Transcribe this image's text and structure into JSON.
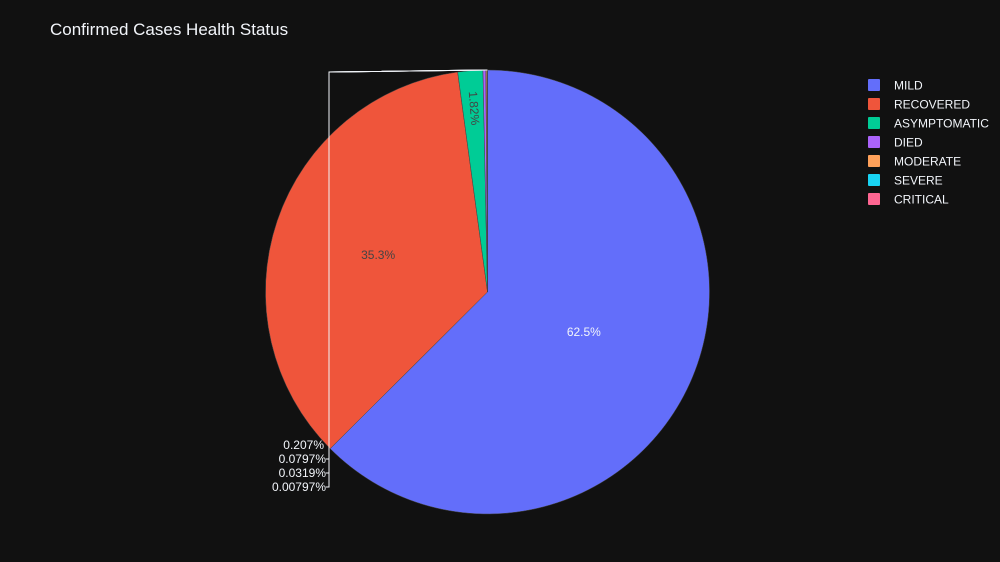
{
  "chart_data": {
    "type": "pie",
    "title": "Confirmed Cases Health Status",
    "labels": [
      "MILD",
      "RECOVERED",
      "ASYMPTOMATIC",
      "DIED",
      "MODERATE",
      "SEVERE",
      "CRITICAL"
    ],
    "values": [
      62.5,
      35.3,
      1.82,
      0.207,
      0.0797,
      0.0319,
      0.00797
    ],
    "text_labels": [
      "62.5%",
      "35.3%",
      "1.82%",
      "0.207%",
      "0.0797%",
      "0.0319%",
      "0.00797%"
    ],
    "colors": [
      "#636efa",
      "#EF553B",
      "#00cc96",
      "#ab63fa",
      "#FFA15A",
      "#19d3f3",
      "#FF6692"
    ],
    "legend_position": "top-right",
    "direction": "clockwise",
    "start_angle": "top"
  },
  "theme": {
    "background": "#111111",
    "text_color": "#f2f5fa",
    "dark_label_color": "#444444"
  }
}
